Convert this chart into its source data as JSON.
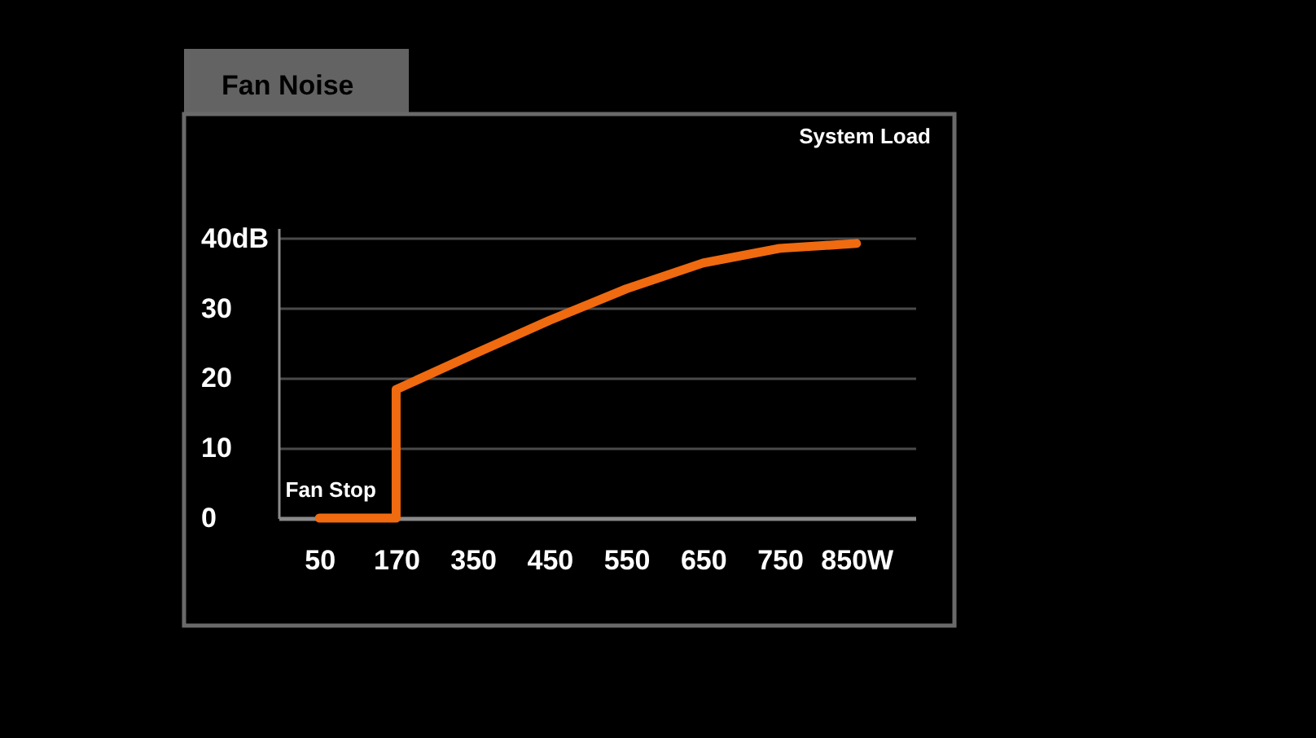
{
  "chart_data": {
    "type": "line",
    "title": "Fan Noise",
    "xlabel": "System Load",
    "categories": [
      "50",
      "170",
      "350",
      "450",
      "550",
      "650",
      "750",
      "850W"
    ],
    "series": [
      {
        "color": "#f06a10",
        "x": [
          "50",
          "170",
          "170",
          "350",
          "450",
          "550",
          "650",
          "750",
          "850W"
        ],
        "values": [
          0,
          0,
          18.4,
          23.4,
          28.3,
          32.8,
          36.5,
          38.6,
          39.3
        ]
      }
    ],
    "ylim": [
      0,
      41.5
    ],
    "yticks": [
      0,
      10,
      20,
      30,
      {
        "value": 40,
        "label": "40dB"
      }
    ],
    "grid": "y",
    "line_style": "solid",
    "annotations": [
      {
        "text": "Fan Stop",
        "x": "50",
        "y": 0
      }
    ]
  }
}
